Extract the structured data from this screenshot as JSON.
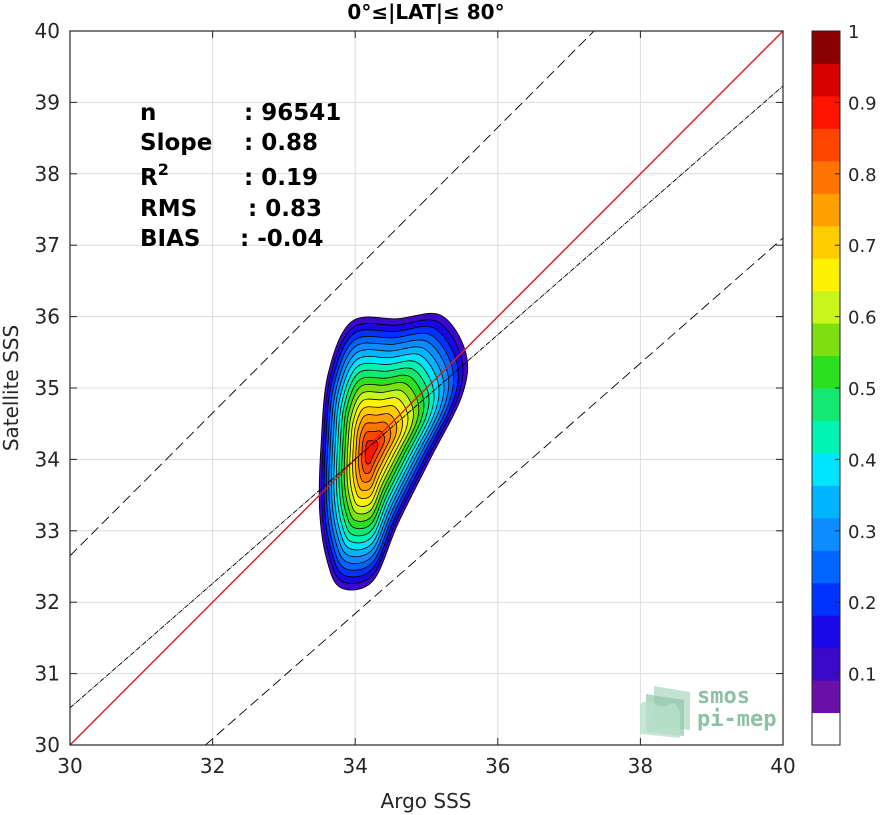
{
  "chart_data": {
    "type": "contour-density",
    "title": "0°≤|LAT|≤ 80°",
    "xlabel": "Argo SSS",
    "ylabel": "Satellite SSS",
    "xlim": [
      30,
      40
    ],
    "ylim": [
      30,
      40
    ],
    "xticks": [
      30,
      32,
      34,
      36,
      38,
      40
    ],
    "yticks": [
      30,
      31,
      32,
      33,
      34,
      35,
      36,
      37,
      38,
      39,
      40
    ],
    "grid": true,
    "stats": {
      "n": {
        "label": "n",
        "value": ": 96541"
      },
      "slope": {
        "label": "Slope",
        "value": ": 0.88"
      },
      "r2": {
        "label": "R",
        "sup": "2",
        "value": ": 0.19"
      },
      "rms": {
        "label": "RMS",
        "value": ": 0.83"
      },
      "bias": {
        "label": "BIAS",
        "value": ": -0.04"
      }
    },
    "lines": {
      "identity": {
        "slope": 1,
        "intercept": 0,
        "color": "#dd1c1c"
      },
      "fit": {
        "slope": 0.88,
        "x0": 30,
        "y0": 30.52,
        "x1": 40,
        "y1": 39.23
      },
      "upper_bound": {
        "x0": 30,
        "y0": 32.65,
        "x1": 40,
        "y1": 42.65
      },
      "lower_bound": {
        "x0": 31.9,
        "y0": 30,
        "x1": 40,
        "y1": 37.1
      }
    },
    "density_center": {
      "x": 34.2,
      "y": 34.1
    },
    "density_levels": [
      0.05,
      0.1,
      0.15,
      0.2,
      0.25,
      0.3,
      0.35,
      0.4,
      0.45,
      0.5,
      0.55,
      0.6,
      0.65,
      0.7,
      0.75,
      0.8,
      0.85,
      0.9
    ],
    "colorbar": {
      "ticks": [
        0.1,
        0.2,
        0.3,
        0.4,
        0.5,
        0.6,
        0.7,
        0.8,
        0.9,
        1
      ],
      "tick_labels": [
        "0.1",
        "0.2",
        "0.3",
        "0.4",
        "0.5",
        "0.6",
        "0.7",
        "0.8",
        "0.9",
        "1"
      ],
      "range": [
        0,
        1
      ],
      "colors": [
        "#ffffff",
        "#6a0fa8",
        "#3b09c8",
        "#1808e8",
        "#0033ff",
        "#0066ff",
        "#0d8cff",
        "#00b4ff",
        "#00e5ff",
        "#00f5b5",
        "#14e873",
        "#2be01f",
        "#7ee010",
        "#c8f51a",
        "#fff200",
        "#ffcc00",
        "#ff9f00",
        "#ff7400",
        "#ff4600",
        "#ff1400",
        "#d60000",
        "#8b0000"
      ]
    }
  },
  "logo": {
    "line1": "smos",
    "line2": "pi-mep"
  }
}
